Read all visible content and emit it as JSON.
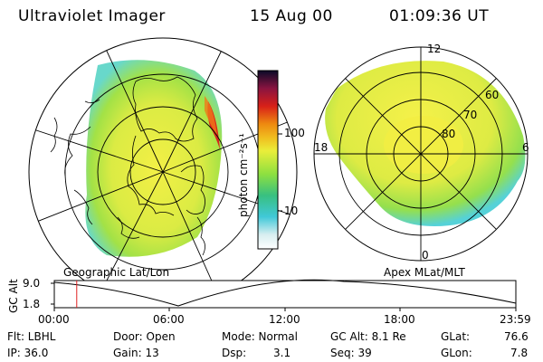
{
  "header": {
    "title": "Ultraviolet Imager",
    "date": "15 Aug 00",
    "time": "01:09:36 UT"
  },
  "colorbar": {
    "unit_label": "photon cm⁻²s⁻¹",
    "ticks": [
      "100",
      "10"
    ]
  },
  "left_panel": {
    "caption": "Geographic Lat/Lon"
  },
  "right_panel": {
    "caption": "Apex MLat/MLT",
    "mlt_labels": {
      "top": "12",
      "left": "18",
      "right": "6",
      "bottom": "0"
    },
    "lat_labels": [
      "60",
      "70",
      "80"
    ]
  },
  "altitude_plot": {
    "ylabel": "GC Alt",
    "yticks": [
      "9.0",
      "1.8"
    ],
    "xticks": [
      "00:00",
      "06:00",
      "12:00",
      "18:00",
      "23:59"
    ],
    "current_marker_fraction": 0.0486
  },
  "status": {
    "flt": "Flt: LBHL",
    "ip": "IP: 36.0",
    "door": "Door: Open",
    "gain": "Gain: 13",
    "mode": "Mode: Normal",
    "dsp_label": "Dsp:",
    "dsp_value": "3.1",
    "gcalt": "GC Alt: 8.1 Re",
    "seq": "Seq: 39",
    "glat_label": "GLat:",
    "glat_value": "76.6",
    "glon_label": "GLon:",
    "glon_value": "7.8"
  },
  "colors": {
    "aurora_yellow": "#f2ef3c",
    "aurora_green": "#a8e23a",
    "aurora_cyan": "#5fd8d8",
    "hotspot_red": "#d8231e",
    "marker_red": "#e02020"
  }
}
